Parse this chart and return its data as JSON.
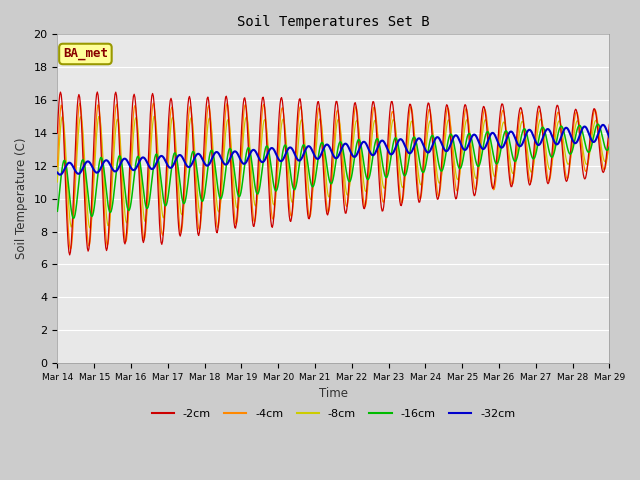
{
  "title": "Soil Temperatures Set B",
  "xlabel": "Time",
  "ylabel": "Soil Temperature (C)",
  "annotation": "BA_met",
  "ylim": [
    0,
    20
  ],
  "n_days": 15,
  "xtick_labels": [
    "Mar 14",
    "Mar 15",
    "Mar 16",
    "Mar 17",
    "Mar 18",
    "Mar 19",
    "Mar 20",
    "Mar 21",
    "Mar 22",
    "Mar 23",
    "Mar 24",
    "Mar 25",
    "Mar 26",
    "Mar 27",
    "Mar 28",
    "Mar 29"
  ],
  "ytick_values": [
    0,
    2,
    4,
    6,
    8,
    10,
    12,
    14,
    16,
    18,
    20
  ],
  "series_colors": {
    "-2cm": "#cc0000",
    "-4cm": "#ff8800",
    "-8cm": "#cccc00",
    "-16cm": "#00bb00",
    "-32cm": "#0000cc"
  },
  "fig_bg_color": "#cccccc",
  "plot_bg_color": "#e8e8e8",
  "grid_color": "#ffffff",
  "annotation_box_color": "#ffff99",
  "annotation_text_color": "#880000",
  "annotation_border_color": "#999900"
}
